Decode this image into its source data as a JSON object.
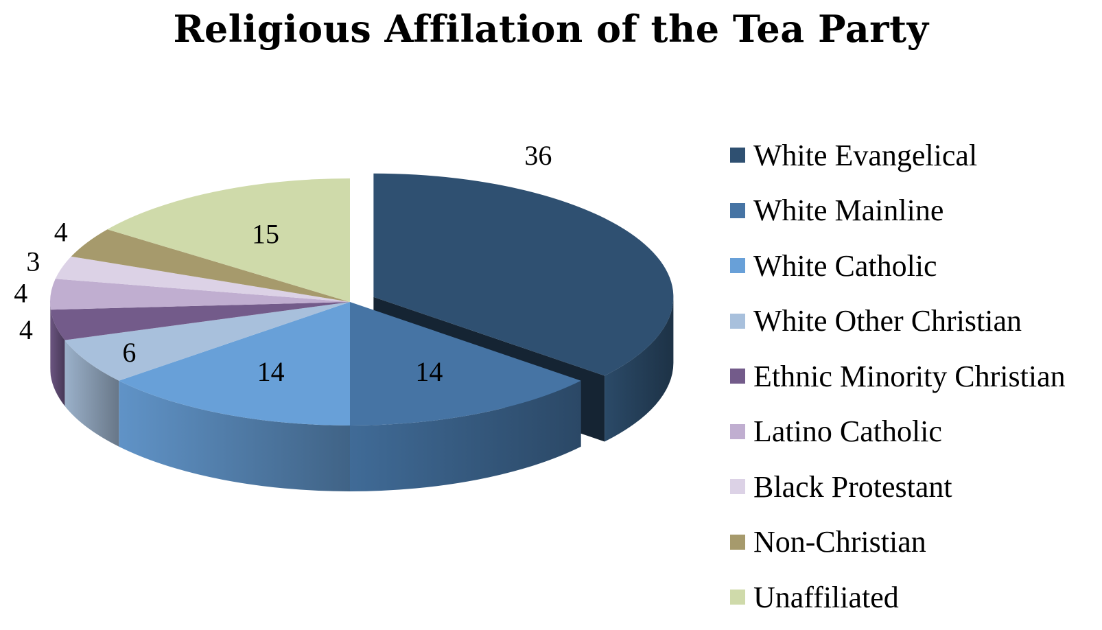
{
  "chart_data": {
    "type": "pie",
    "title": "Religious Affilation of the Tea Party",
    "categories": [
      "White Evangelical",
      "White Mainline",
      "White Catholic",
      "White Other Christian",
      "Ethnic Minority Christian",
      "Latino Catholic",
      "Black Protestant",
      "Non-Christian",
      "Unaffiliated"
    ],
    "values": [
      36,
      14,
      14,
      6,
      4,
      4,
      3,
      4,
      15
    ],
    "colors": [
      "#2f5071",
      "#4674a4",
      "#68a0d8",
      "#a8c0dc",
      "#735b8a",
      "#c0aed0",
      "#dcd2e6",
      "#a69a6c",
      "#cfdaaa"
    ],
    "exploded_slice": "White Evangelical",
    "style": "3d",
    "legend_position": "right"
  }
}
